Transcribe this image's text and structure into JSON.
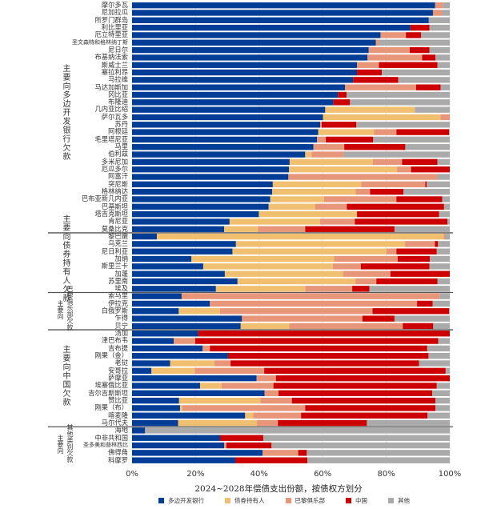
{
  "chart_data": {
    "type": "bar",
    "orientation": "horizontal",
    "stacked": true,
    "title": "2024~2028年偿债支出份额，按债权方划分",
    "xlim": [
      0,
      100
    ],
    "xticks": [
      "0%",
      "20%",
      "40%",
      "60%",
      "80%",
      "100%"
    ],
    "grid": true,
    "legend_position": "bottom",
    "series": [
      {
        "name": "多边开发银行",
        "color": "#003d96"
      },
      {
        "name": "债券持有人",
        "color": "#f0c070"
      },
      {
        "name": "巴黎俱乐部",
        "color": "#e8967a"
      },
      {
        "name": "中国",
        "color": "#cc0000"
      },
      {
        "name": "其他",
        "color": "#aaaaaa"
      }
    ],
    "groups": [
      {
        "label": "主要向多边开发银行欠款",
        "rows": [
          {
            "name": "摩尔多瓦",
            "values": [
              95.4,
              0,
              2.5,
              0,
              2.1
            ]
          },
          {
            "name": "尼加拉瓜",
            "values": [
              94.7,
              0,
              2.9,
              0,
              2.4
            ]
          },
          {
            "name": "所罗门群岛",
            "values": [
              93.4,
              0,
              0,
              0,
              6.6
            ]
          },
          {
            "name": "利比里亚",
            "values": [
              87.6,
              0,
              0,
              6.0,
              6.4
            ]
          },
          {
            "name": "厄立特里亚",
            "values": [
              78.2,
              0,
              8.0,
              4.8,
              9.0
            ]
          },
          {
            "name": "圣文森特和格林纳丁斯",
            "values": [
              76.7,
              0,
              1.0,
              0,
              22.3
            ]
          },
          {
            "name": "尼日尔",
            "values": [
              74.5,
              0,
              12.9,
              6.2,
              6.4
            ]
          },
          {
            "name": "布基纳法索",
            "values": [
              74.1,
              0,
              17.2,
              4.2,
              4.5
            ]
          },
          {
            "name": "斯威士兰",
            "values": [
              70.8,
              0,
              6.9,
              18.4,
              3.9
            ]
          },
          {
            "name": "塞拉利昂",
            "values": [
              70.8,
              0,
              0,
              7.8,
              21.4
            ]
          },
          {
            "name": "马拉维",
            "values": [
              69.6,
              0,
              0,
              14.2,
              16.2
            ]
          },
          {
            "name": "马达加斯加",
            "values": [
              67.0,
              0,
              22.4,
              7.7,
              2.9
            ]
          },
          {
            "name": "冈比亚",
            "values": [
              64.8,
              0,
              0,
              2.7,
              32.5
            ]
          },
          {
            "name": "布隆迪",
            "values": [
              63.4,
              0,
              0,
              5.2,
              31.4
            ]
          },
          {
            "name": "几内亚比绍",
            "values": [
              60.8,
              28.2,
              0,
              0,
              11.0
            ]
          },
          {
            "name": "萨尔瓦多",
            "values": [
              60.1,
              37.0,
              2.9,
              0,
              0
            ]
          },
          {
            "name": "苏丹",
            "values": [
              59.2,
              0,
              0.5,
              10.9,
              29.4
            ]
          },
          {
            "name": "阿根廷",
            "values": [
              58.6,
              17.5,
              7.1,
              16.6,
              0.2
            ]
          },
          {
            "name": "毛里塔尼亚",
            "values": [
              58.2,
              0,
              2.8,
              14.9,
              24.1
            ]
          },
          {
            "name": "马里",
            "values": [
              57.1,
              0,
              9.7,
              19.2,
              14.0
            ]
          },
          {
            "name": "伯利兹",
            "values": [
              54.5,
              2.0,
              10.1,
              0,
              33.4
            ]
          },
          {
            "name": "多米尼加",
            "values": [
              49.6,
              26.2,
              9.2,
              11.1,
              3.9
            ]
          },
          {
            "name": "厄瓜多尔",
            "values": [
              49.4,
              34.0,
              4.4,
              12.2,
              0
            ]
          },
          {
            "name": "阿富汗",
            "values": [
              49.2,
              0,
              47.0,
              0,
              3.8
            ]
          },
          {
            "name": "突尼斯",
            "values": [
              44.3,
              27.8,
              20.2,
              0.4,
              7.3
            ]
          },
          {
            "name": "格林纳达",
            "values": [
              44.1,
              26.3,
              4.5,
              10.5,
              14.6
            ]
          },
          {
            "name": "巴布亚新几内亚",
            "values": [
              43.5,
              16.9,
              22.8,
              14.4,
              2.4
            ]
          },
          {
            "name": "巴基斯坦",
            "values": [
              43.0,
              14.6,
              10.0,
              30.6,
              1.8
            ]
          },
          {
            "name": "塔吉克斯坦",
            "values": [
              39.9,
              30.9,
              0,
              25.8,
              3.4
            ]
          },
          {
            "name": "肯尼亚",
            "values": [
              30.7,
              28.5,
              10.9,
              29.2,
              0.7
            ]
          },
          {
            "name": "莫桑比克",
            "values": [
              29.0,
              10.6,
              14.9,
              28.1,
              17.4
            ]
          }
        ]
      },
      {
        "label": "主要向债券持有人欠款",
        "rows": [
          {
            "name": "黎巴嫩",
            "values": [
              7.8,
              90.3,
              0.5,
              0,
              1.4
            ]
          },
          {
            "name": "乌克兰",
            "values": [
              32.7,
              53.2,
              9.4,
              1.0,
              3.7
            ]
          },
          {
            "name": "尼日利亚",
            "values": [
              31.6,
              48.5,
              3.1,
              12.7,
              4.1
            ]
          },
          {
            "name": "加纳",
            "values": [
              18.7,
              44.9,
              20.0,
              10.1,
              6.3
            ]
          },
          {
            "name": "斯里兰卡",
            "values": [
              22.4,
              40.8,
              8.8,
              21.6,
              6.4
            ]
          },
          {
            "name": "加蓬",
            "values": [
              29.2,
              37.2,
              14.9,
              18.7,
              0
            ]
          },
          {
            "name": "苏里南",
            "values": [
              33.2,
              37.1,
              6.6,
              19.2,
              3.9
            ]
          },
          {
            "name": "埃及",
            "values": [
              26.4,
              28.1,
              14.8,
              5.4,
              25.3
            ]
          }
        ]
      },
      {
        "label_prefix": "主要向",
        "label": "巴黎俱乐部欠款",
        "rows": [
          {
            "name": "索马里",
            "values": [
              15.6,
              0,
              81.3,
              0,
              3.1
            ]
          },
          {
            "name": "伊拉克",
            "values": [
              24.5,
              0,
              65.2,
              4.9,
              5.4
            ]
          },
          {
            "name": "白俄罗斯",
            "values": [
              14.7,
              13.0,
              48.0,
              24.1,
              0.2
            ]
          },
          {
            "name": "乍得",
            "values": [
              34.6,
              0,
              37.9,
              10.1,
              17.4
            ]
          },
          {
            "name": "贝宁",
            "values": [
              34.2,
              15.3,
              35.7,
              9.6,
              5.2
            ]
          }
        ]
      },
      {
        "label": "主要向中国欠款",
        "rows": [
          {
            "name": "汤加",
            "values": [
              20.8,
              0,
              0,
              79.2,
              0
            ]
          },
          {
            "name": "津巴布韦",
            "values": [
              13.1,
              0,
              6.8,
              76.5,
              3.6
            ]
          },
          {
            "name": "吉布提",
            "values": [
              22.2,
              0,
              2.3,
              68.4,
              7.1
            ]
          },
          {
            "name": "刚果（金）",
            "values": [
              30.2,
              0,
              0,
              63.1,
              6.7
            ]
          },
          {
            "name": "老挝",
            "values": [
              12.0,
              13.9,
              5.1,
              59.3,
              9.7
            ]
          },
          {
            "name": "安哥拉",
            "values": [
              6.1,
              13.6,
              21.9,
              57.1,
              1.3
            ]
          },
          {
            "name": "萨摩亚",
            "values": [
              39.2,
              0,
              6.1,
              54.7,
              0
            ]
          },
          {
            "name": "埃塞俄比亚",
            "values": [
              21.4,
              6.8,
              16.3,
              51.4,
              4.1
            ]
          },
          {
            "name": "吉尔吉斯斯坦",
            "values": [
              41.7,
              0,
              4.4,
              48.4,
              5.5
            ]
          },
          {
            "name": "赞比亚",
            "values": [
              14.8,
              25.6,
              9.9,
              45.2,
              4.5
            ]
          },
          {
            "name": "刚果（布）",
            "values": [
              15.1,
              0.7,
              38.7,
              41.0,
              4.5
            ]
          },
          {
            "name": "喀麦隆",
            "values": [
              35.6,
              2.5,
              15.1,
              39.8,
              7.0
            ]
          },
          {
            "name": "马尔代夫",
            "values": [
              14.5,
              24.8,
              6.6,
              28.0,
              26.1
            ]
          }
        ]
      },
      {
        "label_prefix": "主要向",
        "label": "其他类别欠款",
        "rows": [
          {
            "name": "海地",
            "values": [
              4.1,
              0,
              0,
              0,
              95.9
            ]
          },
          {
            "name": "中非共和国",
            "values": [
              27.7,
              0,
              0,
              13.6,
              58.7
            ]
          },
          {
            "name": "圣多美和普林西比",
            "values": [
              29.0,
              0,
              0.7,
              14.2,
              56.1
            ]
          },
          {
            "name": "佛得角",
            "values": [
              41.1,
              0,
              11.2,
              2.7,
              45.0
            ]
          },
          {
            "name": "科摩罗",
            "values": [
              32.5,
              0,
              0,
              22.7,
              44.8
            ]
          }
        ]
      }
    ]
  }
}
